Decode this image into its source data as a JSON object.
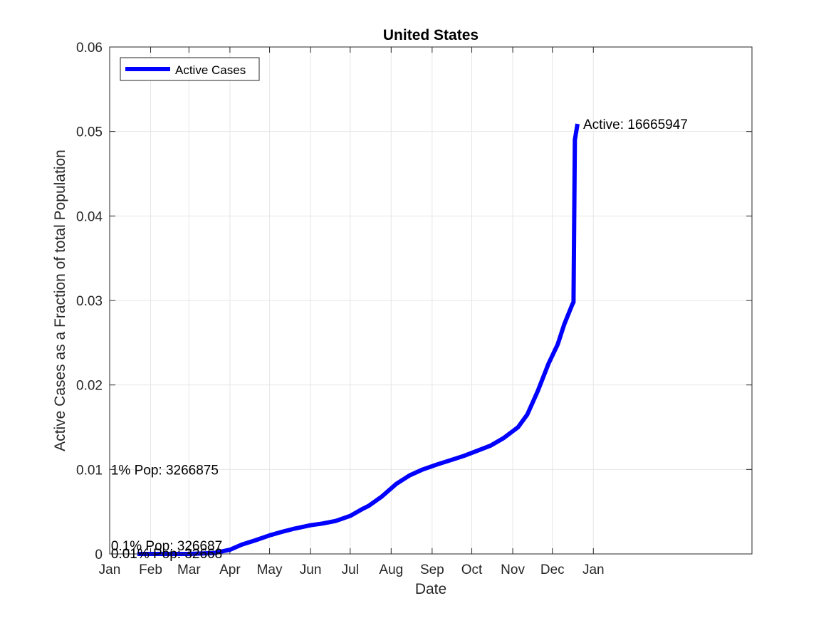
{
  "chart_data": {
    "type": "line",
    "title": "United States",
    "xlabel": "Date",
    "ylabel": "Active Cases as a Fraction of total Population",
    "x_tick_labels": [
      "Jan",
      "Feb",
      "Mar",
      "Apr",
      "May",
      "Jun",
      "Jul",
      "Aug",
      "Sep",
      "Oct",
      "Nov",
      "Dec",
      "Jan"
    ],
    "y_tick_labels": [
      "0",
      "0.01",
      "0.02",
      "0.03",
      "0.04",
      "0.05",
      "0.06"
    ],
    "ylim": [
      0,
      0.06
    ],
    "xlim": [
      "2020-01-01",
      "2021-05-01"
    ],
    "grid": true,
    "legend": {
      "position": "top-left",
      "entries": [
        "Active Cases"
      ]
    },
    "series": [
      {
        "name": "Active Cases",
        "color": "#0000ff",
        "points": [
          [
            "2020-01-22",
            0.0
          ],
          [
            "2020-02-15",
            0.0
          ],
          [
            "2020-03-01",
            0.0
          ],
          [
            "2020-03-20",
            0.0001
          ],
          [
            "2020-04-01",
            0.0005
          ],
          [
            "2020-04-10",
            0.0011
          ],
          [
            "2020-04-20",
            0.0016
          ],
          [
            "2020-05-01",
            0.0022
          ],
          [
            "2020-05-10",
            0.0026
          ],
          [
            "2020-05-20",
            0.003
          ],
          [
            "2020-06-01",
            0.0034
          ],
          [
            "2020-06-10",
            0.0036
          ],
          [
            "2020-06-20",
            0.0039
          ],
          [
            "2020-07-01",
            0.0045
          ],
          [
            "2020-07-10",
            0.0053
          ],
          [
            "2020-07-15",
            0.0057
          ],
          [
            "2020-07-25",
            0.0068
          ],
          [
            "2020-08-05",
            0.0083
          ],
          [
            "2020-08-15",
            0.0093
          ],
          [
            "2020-08-25",
            0.01
          ],
          [
            "2020-09-05",
            0.0106
          ],
          [
            "2020-09-15",
            0.0111
          ],
          [
            "2020-09-25",
            0.0116
          ],
          [
            "2020-10-05",
            0.0122
          ],
          [
            "2020-10-15",
            0.0128
          ],
          [
            "2020-10-25",
            0.0137
          ],
          [
            "2020-11-05",
            0.015
          ],
          [
            "2020-11-12",
            0.0165
          ],
          [
            "2020-11-20",
            0.0193
          ],
          [
            "2020-11-28",
            0.0225
          ],
          [
            "2020-12-05",
            0.0248
          ],
          [
            "2020-12-10",
            0.0272
          ],
          [
            "2020-12-16",
            0.0295
          ],
          [
            "2020-12-17",
            0.0298
          ],
          [
            "2020-12-18",
            0.049
          ],
          [
            "2020-12-20",
            0.0509
          ]
        ]
      }
    ],
    "annotations": [
      {
        "text": "Active: 16665947",
        "x": "2020-12-20",
        "y": 0.0509
      },
      {
        "text": "1% Pop: 3266875",
        "x": "2020-01-02",
        "y": 0.01
      },
      {
        "text": "0.1% Pop: 326687",
        "x": "2020-01-02",
        "y": 0.001
      },
      {
        "text": "0.01% Pop: 32668",
        "x": "2020-01-02",
        "y": 0.0001
      }
    ]
  }
}
